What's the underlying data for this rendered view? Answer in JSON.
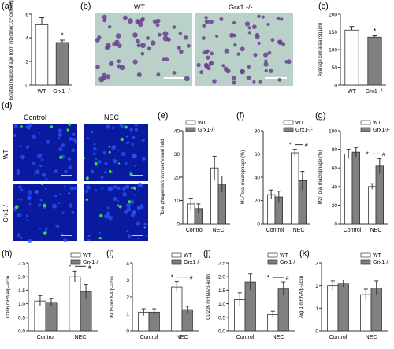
{
  "figure": {
    "panel_letters": [
      "(a)",
      "(b)",
      "(c)",
      "(d)",
      "(e)",
      "(f)",
      "(g)",
      "(h)",
      "(i)",
      "(j)",
      "(k)"
    ],
    "micro_b": {
      "left_label": "WT",
      "right_label": "Grx1 -/-"
    },
    "micro_d": {
      "col_labels": [
        "Control",
        "NEC"
      ],
      "row_labels": [
        "WT",
        "Grx1-/-"
      ]
    },
    "colors": {
      "wt": "#ffffff",
      "grx": "#808080",
      "stroke": "#333333",
      "micro_bg": "#b9d1c9",
      "cell": "#6a3f8f",
      "fluor_bg": "#0a1a9e",
      "fluor_green": "#3cdc3c"
    }
  },
  "chart_data": [
    {
      "panel": "(a)",
      "type": "bar",
      "categories": [
        "WT",
        "Grx1 -/-"
      ],
      "values": [
        5.1,
        3.6
      ],
      "errors": [
        0.6,
        0.2
      ],
      "ylabel": "Isolated macrophage from intestine(10⁴ cell /mg)",
      "ylim": [
        0,
        6
      ],
      "yticks": [
        0,
        2,
        4,
        6
      ],
      "annotations": [
        {
          "text": "*",
          "category": "Grx1 -/-"
        }
      ]
    },
    {
      "panel": "(c)",
      "type": "bar",
      "categories": [
        "WT",
        "Grx1 -/-"
      ],
      "values": [
        155,
        135
      ],
      "errors": [
        10,
        4
      ],
      "ylabel": "Average cell area (sq μm)",
      "ylim": [
        0,
        200
      ],
      "yticks": [
        0,
        50,
        100,
        150,
        200
      ],
      "annotations": [
        {
          "text": "*",
          "category": "Grx1 -/-"
        }
      ]
    },
    {
      "panel": "(e)",
      "type": "bar",
      "categories": [
        "Control",
        "NEC"
      ],
      "series": [
        {
          "name": "WT",
          "values": [
            8.5,
            24
          ],
          "errors": [
            2.5,
            5
          ]
        },
        {
          "name": "Grx1-/-",
          "values": [
            6.5,
            17
          ],
          "errors": [
            2,
            3.5
          ]
        }
      ],
      "ylabel": "Total phagemia/c number/visual field",
      "ylim": [
        0,
        40
      ],
      "yticks": [
        0,
        10,
        20,
        30,
        40
      ],
      "legend": "top-left",
      "annotations": []
    },
    {
      "panel": "(f)",
      "type": "bar",
      "categories": [
        "Control",
        "NEC"
      ],
      "series": [
        {
          "name": "WT",
          "values": [
            25,
            61
          ],
          "errors": [
            4,
            3
          ]
        },
        {
          "name": "Grx1-/-",
          "values": [
            23,
            37
          ],
          "errors": [
            5,
            8
          ]
        }
      ],
      "ylabel": "M1/Total macrophage (%)",
      "ylim": [
        0,
        80
      ],
      "yticks": [
        0,
        20,
        40,
        60,
        80
      ],
      "legend": "top-right",
      "annotations": [
        {
          "text": "*"
        },
        {
          "text": "#"
        }
      ]
    },
    {
      "panel": "(g)",
      "type": "bar",
      "categories": [
        "Control",
        "NEC"
      ],
      "series": [
        {
          "name": "WT",
          "values": [
            75,
            40
          ],
          "errors": [
            5,
            3
          ]
        },
        {
          "name": "Grx1-/-",
          "values": [
            77,
            62
          ],
          "errors": [
            5,
            8
          ]
        }
      ],
      "ylabel": "M2/Total macrophage (%)",
      "ylim": [
        0,
        100
      ],
      "yticks": [
        0,
        20,
        40,
        60,
        80,
        100
      ],
      "legend": "top-right",
      "annotations": [
        {
          "text": "*"
        },
        {
          "text": "#"
        }
      ]
    },
    {
      "panel": "(h)",
      "type": "bar",
      "categories": [
        "Control",
        "NEC"
      ],
      "series": [
        {
          "name": "WT",
          "values": [
            1.1,
            2.0
          ],
          "errors": [
            0.2,
            0.2
          ]
        },
        {
          "name": "Grx1-/-",
          "values": [
            1.05,
            1.45
          ],
          "errors": [
            0.15,
            0.25
          ]
        }
      ],
      "ylabel": "CD86 mRNA/β-actin",
      "ylim": [
        0,
        2.5
      ],
      "yticks": [
        0,
        0.5,
        1.0,
        1.5,
        2.0,
        2.5
      ],
      "legend": "top",
      "annotations": [
        {
          "text": "*"
        },
        {
          "text": "#"
        }
      ]
    },
    {
      "panel": "(i)",
      "type": "bar",
      "categories": [
        "Control",
        "NEC"
      ],
      "series": [
        {
          "name": "WT",
          "values": [
            1.1,
            2.6
          ],
          "errors": [
            0.2,
            0.3
          ]
        },
        {
          "name": "Grx1-/-",
          "values": [
            1.1,
            1.25
          ],
          "errors": [
            0.2,
            0.2
          ]
        }
      ],
      "ylabel": "iNOS mRNA/β-actin",
      "ylim": [
        0,
        4
      ],
      "yticks": [
        0,
        1,
        2,
        3,
        4
      ],
      "legend": "top",
      "annotations": [
        {
          "text": "*"
        },
        {
          "text": "#"
        }
      ]
    },
    {
      "panel": "(j)",
      "type": "bar",
      "categories": [
        "Control",
        "NEC"
      ],
      "series": [
        {
          "name": "WT",
          "values": [
            1.15,
            0.6
          ],
          "errors": [
            0.25,
            0.12
          ]
        },
        {
          "name": "Grx1-/-",
          "values": [
            1.8,
            1.55
          ],
          "errors": [
            0.3,
            0.25
          ]
        }
      ],
      "ylabel": "CD206 mRNA/β-actin",
      "ylim": [
        0,
        2.5
      ],
      "yticks": [
        0,
        0.5,
        1.0,
        1.5,
        2.0,
        2.5
      ],
      "legend": "top",
      "annotations": [
        {
          "text": "*"
        },
        {
          "text": "#"
        }
      ]
    },
    {
      "panel": "(k)",
      "type": "bar",
      "categories": [
        "Control",
        "NEC"
      ],
      "series": [
        {
          "name": "WT",
          "values": [
            2.0,
            1.6
          ],
          "errors": [
            0.2,
            0.25
          ]
        },
        {
          "name": "Grx1-/-",
          "values": [
            2.1,
            1.9
          ],
          "errors": [
            0.15,
            0.3
          ]
        }
      ],
      "ylabel": "Arg-1 mRNA/β-actin",
      "ylim": [
        0,
        3
      ],
      "yticks": [
        0,
        1,
        2,
        3
      ],
      "legend": "top",
      "annotations": []
    }
  ]
}
